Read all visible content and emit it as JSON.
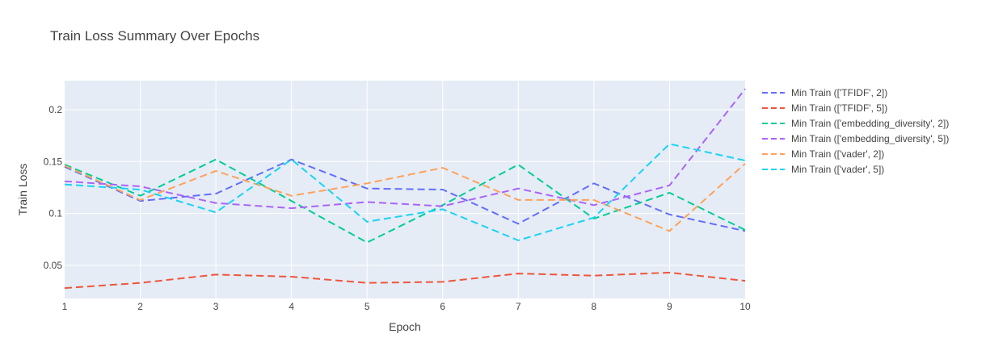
{
  "chart_data": {
    "type": "line",
    "title": "Train Loss Summary Over Epochs",
    "xlabel": "Epoch",
    "ylabel": "Train Loss",
    "x": [
      1,
      2,
      3,
      4,
      5,
      6,
      7,
      8,
      9,
      10
    ],
    "x_ticks": [
      1,
      2,
      3,
      4,
      5,
      6,
      7,
      8,
      9,
      10
    ],
    "y_ticks": [
      0.05,
      0.1,
      0.15,
      0.2
    ],
    "y_tick_labels": [
      "0.05",
      "0.1",
      "0.15",
      "0.2"
    ],
    "xlim": [
      1,
      10
    ],
    "ylim": [
      0.018,
      0.228
    ],
    "grid": true,
    "legend_position": "right",
    "plot_background": "#e5ecf6",
    "series": [
      {
        "name": "Min Train (['TFIDF', 2])",
        "color": "#636efa",
        "values": [
          0.145,
          0.112,
          0.119,
          0.152,
          0.124,
          0.123,
          0.09,
          0.129,
          0.099,
          0.083
        ]
      },
      {
        "name": "Min Train (['TFIDF', 5])",
        "color": "#ef553b",
        "values": [
          0.028,
          0.033,
          0.041,
          0.039,
          0.033,
          0.034,
          0.042,
          0.04,
          0.043,
          0.035
        ]
      },
      {
        "name": "Min Train (['embedding_diversity', 2])",
        "color": "#00cc96",
        "values": [
          0.147,
          0.117,
          0.152,
          0.112,
          0.072,
          0.108,
          0.147,
          0.095,
          0.12,
          0.084
        ]
      },
      {
        "name": "Min Train (['embedding_diversity', 5])",
        "color": "#ab63fa",
        "values": [
          0.131,
          0.126,
          0.11,
          0.105,
          0.111,
          0.107,
          0.124,
          0.108,
          0.127,
          0.22
        ]
      },
      {
        "name": "Min Train (['vader', 2])",
        "color": "#ffa15a",
        "values": [
          0.146,
          0.113,
          0.141,
          0.117,
          0.129,
          0.144,
          0.113,
          0.113,
          0.083,
          0.148
        ]
      },
      {
        "name": "Min Train (['vader', 5])",
        "color": "#19d3f3",
        "values": [
          0.128,
          0.123,
          0.101,
          0.152,
          0.092,
          0.104,
          0.074,
          0.096,
          0.167,
          0.151
        ]
      }
    ]
  }
}
